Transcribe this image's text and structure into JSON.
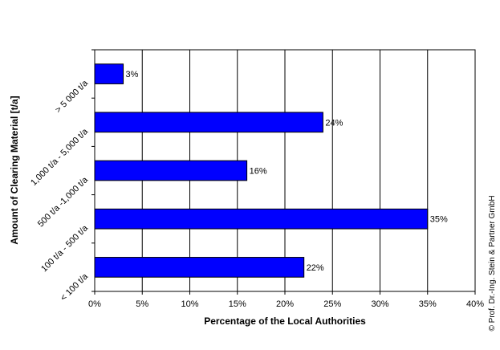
{
  "chart_data": {
    "type": "bar",
    "orientation": "horizontal",
    "categories": [
      "> 5 000 t/a",
      "1,000 t/a - 5,000 t/a",
      "500 t/a -1,000 t/a",
      "100 t/a - 500 t/a",
      "< 100 t/a"
    ],
    "values": [
      3,
      24,
      16,
      35,
      22
    ],
    "data_labels": [
      "3%",
      "24%",
      "16%",
      "35%",
      "22%"
    ],
    "xlabel": "Percentage of the Local Authorities",
    "ylabel": "Amount of Clearing Material [t/a]",
    "xlim": [
      0,
      40
    ],
    "xticks": [
      0,
      5,
      10,
      15,
      20,
      25,
      30,
      35,
      40
    ],
    "xtick_labels": [
      "0%",
      "5%",
      "10%",
      "15%",
      "20%",
      "25%",
      "30%",
      "35%",
      "40%"
    ],
    "grid": "vertical",
    "legend": "none",
    "bar_color": "#0000ff",
    "bar_outline": "#000000",
    "copyright": "© Prof. Dr.-Ing. Stein & Partner GmbH"
  }
}
